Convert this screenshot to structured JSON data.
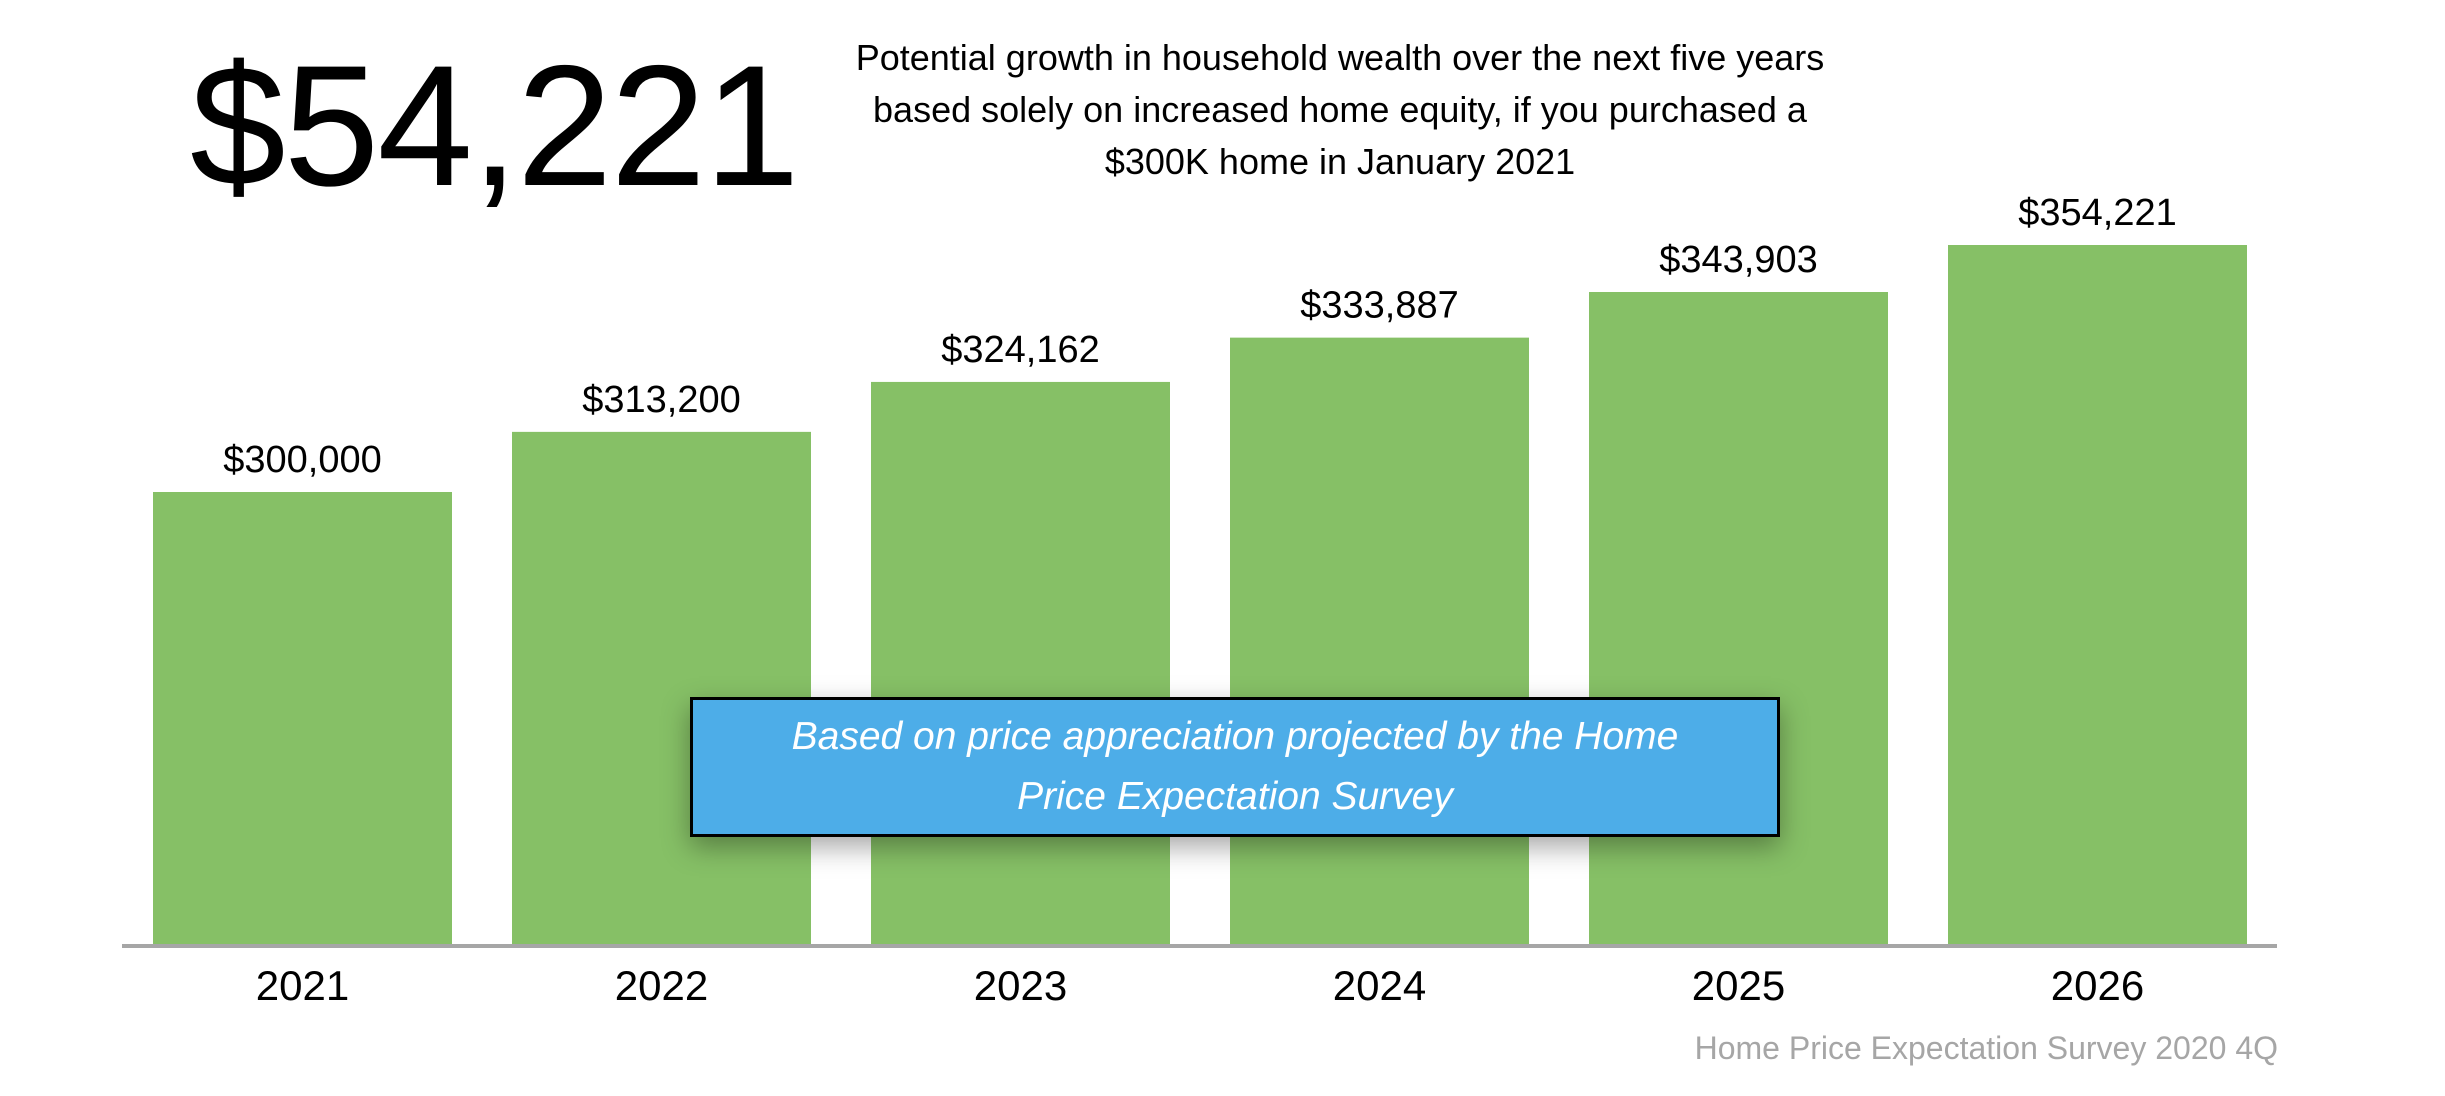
{
  "headline": "$54,221",
  "callout": "Based on price appreciation projected by the Home Price Expectation Survey",
  "source": "Home Price Expectation Survey 2020 4Q",
  "colors": {
    "bar": "#86c066",
    "axis": "#a6a6a6",
    "callout": "#4dade8"
  },
  "chart_data": {
    "type": "bar",
    "title": "Potential growth in household wealth over the next five years based solely on increased home equity, if you purchased a $300K home in January 2021",
    "categories": [
      "2021",
      "2022",
      "2023",
      "2024",
      "2025",
      "2026"
    ],
    "values": [
      300000,
      313200,
      324162,
      333887,
      343903,
      354221
    ],
    "value_labels": [
      "$300,000",
      "$313,200",
      "$324,162",
      "$333,887",
      "$343,903",
      "$354,221"
    ],
    "xlabel": "",
    "ylabel": "",
    "grid": false,
    "legend": "none"
  }
}
